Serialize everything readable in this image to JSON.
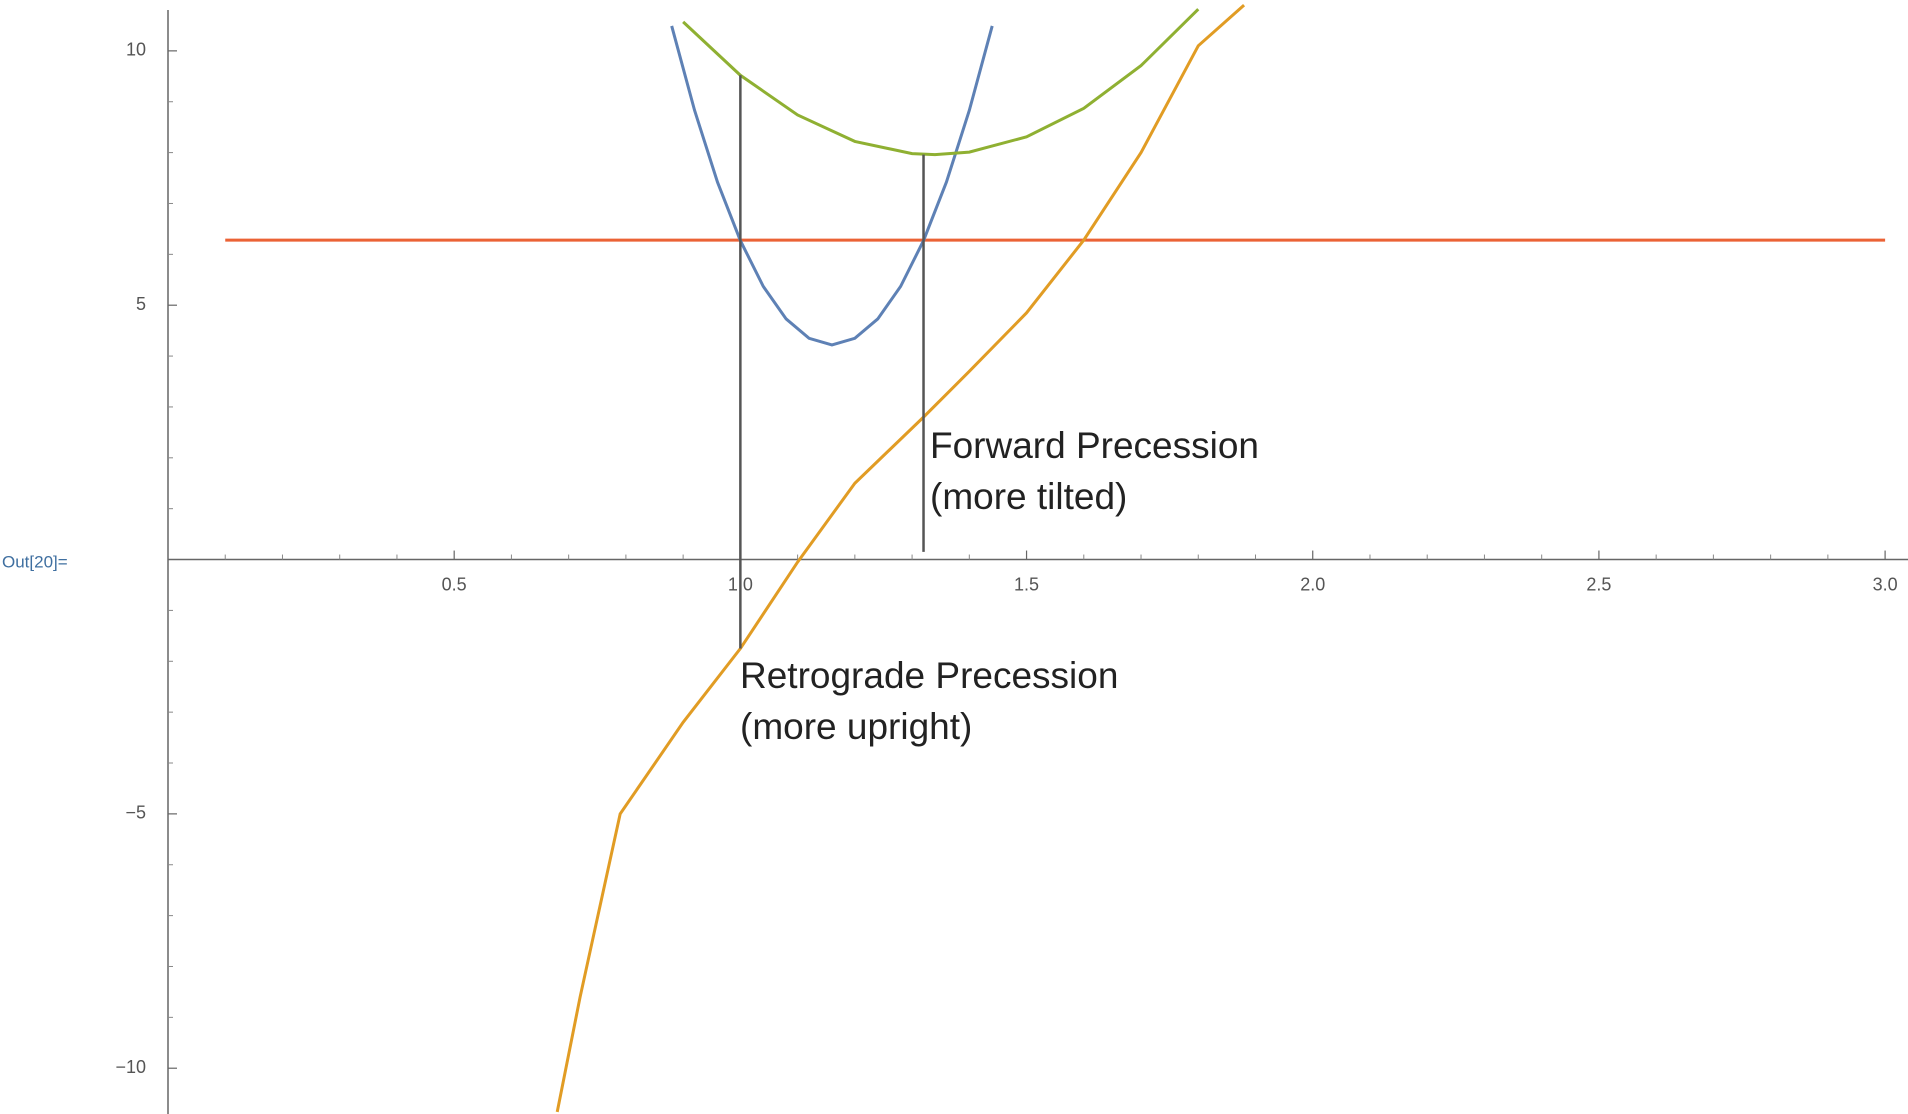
{
  "chart_data": {
    "type": "line",
    "output_label": "Out[20]=",
    "xlim": [
      0,
      3.04
    ],
    "ylim": [
      -10.9,
      11.0
    ],
    "xticks": [
      0.5,
      {
        "value": 1.0,
        "label": "1.0"
      },
      1.5,
      {
        "value": 2.0,
        "label": "2.0"
      },
      2.5,
      {
        "value": 3.0,
        "label": "3.0"
      }
    ],
    "yticks": [
      10,
      5,
      {
        "value": -5,
        "label": "−5"
      },
      {
        "value": -10,
        "label": "−10"
      }
    ],
    "xminorticks": [
      0.1,
      0.2,
      0.3,
      0.4,
      0.6,
      0.7,
      0.8,
      0.9,
      1.1,
      1.2,
      1.3,
      1.4,
      1.6,
      1.7,
      1.8,
      1.9,
      2.1,
      2.2,
      2.3,
      2.4,
      2.6,
      2.7,
      2.8,
      2.9
    ],
    "yminorticks": [
      1,
      2,
      3,
      4,
      6,
      7,
      8,
      9,
      -1,
      -2,
      -3,
      -4,
      -6,
      -7,
      -8,
      -9
    ],
    "series": [
      {
        "color": "#eb6235",
        "x": [
          0.1,
          3.0
        ],
        "values": [
          6.28,
          6.28
        ]
      },
      {
        "color": "#5e81b5",
        "x": [
          0.88,
          0.92,
          0.96,
          1.0,
          1.04,
          1.08,
          1.12,
          1.16,
          1.2,
          1.24,
          1.28,
          1.32,
          1.36,
          1.4,
          1.44
        ],
        "values": [
          10.49,
          8.83,
          7.42,
          6.27,
          5.37,
          4.73,
          4.35,
          4.22,
          4.35,
          4.73,
          5.37,
          6.27,
          7.42,
          8.83,
          10.49
        ]
      },
      {
        "color": "#8fb032",
        "x": [
          0.9,
          1.0,
          1.1,
          1.2,
          1.3,
          1.34,
          1.4,
          1.5,
          1.6,
          1.7,
          1.8
        ],
        "values": [
          10.57,
          9.52,
          8.74,
          8.22,
          7.98,
          7.96,
          8.01,
          8.31,
          8.87,
          9.71,
          10.82
        ]
      },
      {
        "color": "#e19c24",
        "x": [
          0.68,
          0.72,
          0.79,
          0.9,
          1.0,
          1.1,
          1.2,
          1.32,
          1.4,
          1.5,
          1.6,
          1.7,
          1.8,
          1.88
        ],
        "values": [
          -10.86,
          -8.6,
          -5.0,
          -3.2,
          -1.75,
          -0.05,
          1.5,
          2.8,
          3.7,
          4.85,
          6.28,
          8.0,
          10.1,
          10.9
        ]
      }
    ],
    "vlines": [
      {
        "color": "#555555",
        "x": 1.0,
        "y": [
          -1.75,
          9.52
        ]
      },
      {
        "color": "#555555",
        "x": 1.32,
        "y": [
          0.15,
          7.96
        ]
      }
    ],
    "annotations": [
      {
        "lines": [
          "Forward Precession",
          "(more tilted)"
        ]
      },
      {
        "lines": [
          "Retrograde Precession",
          "(more upright)"
        ]
      }
    ]
  }
}
